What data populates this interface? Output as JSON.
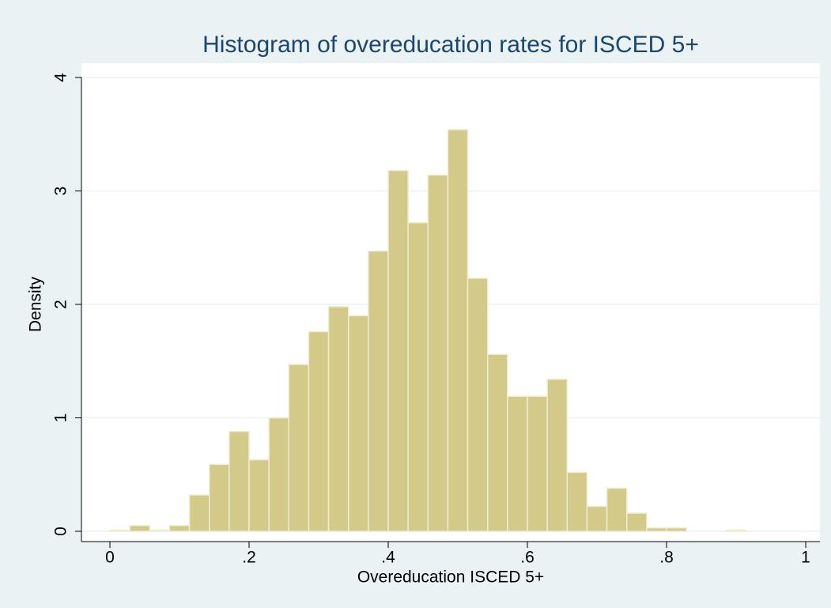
{
  "chart_data": {
    "type": "histogram",
    "title": "Histogram of overeducation rates for ISCED 5+",
    "x_label": "Overeducation ISCED 5+",
    "y_label": "Density",
    "bins": [
      0,
      0.0286,
      0.0571,
      0.0857,
      0.1143,
      0.1429,
      0.1714,
      0.2,
      0.2286,
      0.2571,
      0.2857,
      0.3143,
      0.3429,
      0.3714,
      0.4,
      0.4286,
      0.4571,
      0.4857,
      0.5143,
      0.5429,
      0.5714,
      0.6,
      0.6286,
      0.6571,
      0.6857,
      0.7143,
      0.7429,
      0.7714,
      0.8,
      0.8286,
      0.8571,
      0.8857,
      0.9143
    ],
    "values": [
      0.01,
      0.05,
      0.01,
      0.05,
      0.32,
      0.59,
      0.88,
      0.63,
      1.0,
      1.47,
      1.76,
      1.98,
      1.9,
      2.47,
      3.18,
      2.72,
      3.14,
      3.54,
      2.23,
      1.56,
      1.19,
      1.19,
      1.34,
      0.52,
      0.22,
      0.38,
      0.16,
      0.03,
      0.03,
      0,
      0,
      0.01
    ],
    "color": "#d3ca8a",
    "xlim": [
      0,
      1
    ],
    "xticks": [
      0,
      {
        "value": 0.2,
        "label": ".2"
      },
      {
        "value": 0.4,
        "label": ".4"
      },
      {
        "value": 0.6,
        "label": ".6"
      },
      {
        "value": 0.8,
        "label": ".8"
      },
      1
    ],
    "ylim": [
      0,
      4
    ],
    "yticks": [
      0,
      1,
      2,
      3,
      4
    ],
    "grid": true
  }
}
